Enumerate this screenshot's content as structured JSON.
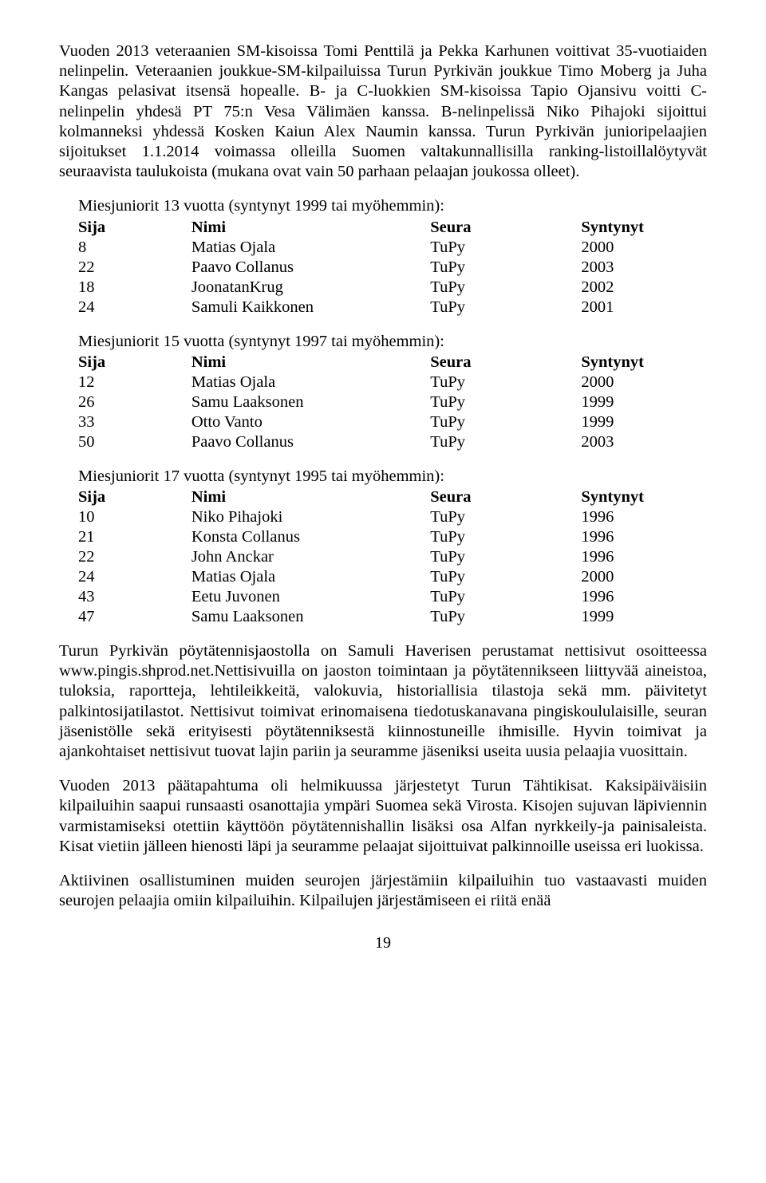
{
  "paragraphs": {
    "p1": "Vuoden 2013 veteraanien SM-kisoissa Tomi Penttilä ja Pekka Karhunen voittivat 35-vuotiaiden nelinpelin. Veteraanien joukkue-SM-kilpailuissa Turun Pyrkivän joukkue Timo Moberg ja Juha Kangas pelasivat itsensä hopealle. B- ja C-luokkien SM-kisoissa Tapio Ojansivu voitti C-nelinpelin yhdesä PT 75:n Vesa Välimäen kanssa. B-nelinpelissä Niko Pihajoki sijoittui kolmanneksi yhdessä Kosken Kaiun Alex Naumin kanssa. Turun Pyrkivän junioripelaajien sijoitukset 1.1.2014 voimassa olleilla Suomen valtakunnallisilla ranking-listoillalöytyvät seuraavista taulukoista (mukana ovat vain 50 parhaan pelaajan joukossa olleet).",
    "p2": "Turun Pyrkivän pöytätennisjaostolla on Samuli Haverisen perustamat nettisivut osoitteessa www.pingis.shprod.net.Nettisivuilla on jaoston toimintaan ja pöytätennikseen liittyvää aineistoa, tuloksia, raportteja, lehtileikkeitä, valokuvia, historiallisia tilastoja sekä mm. päivitetyt palkintosijatilastot. Nettisivut toimivat erinomaisena tiedotuskanavana pingiskoululaisille, seuran jäsenistölle sekä erityisesti pöytätenniksestä kiinnostuneille ihmisille. Hyvin toimivat ja ajankohtaiset nettisivut tuovat lajin pariin ja seuramme jäseniksi useita uusia pelaajia vuosittain.",
    "p3": "Vuoden 2013 päätapahtuma oli helmikuussa järjestetyt Turun Tähtikisat. Kaksipäiväisiin kilpailuihin saapui runsaasti osanottajia ympäri Suomea sekä Virosta. Kisojen sujuvan läpiviennin varmistamiseksi otettiin käyttöön pöytätennishallin lisäksi osa Alfan nyrkkeily-ja painisaleista. Kisat vietiin jälleen hienosti läpi ja seuramme pelaajat sijoittuivat palkinnoille useissa eri luokissa.",
    "p4": "Aktiivinen osallistuminen muiden seurojen järjestämiin kilpailuihin tuo vastaavasti muiden seurojen pelaajia omiin kilpailuihin. Kilpailujen järjestämiseen ei riitä enää"
  },
  "headers": {
    "sija": "Sija",
    "nimi": "Nimi",
    "seura": "Seura",
    "synt": "Syntynyt"
  },
  "table1": {
    "title": "Miesjuniorit 13 vuotta (syntynyt 1999 tai myöhemmin):",
    "rows": [
      {
        "sija": "8",
        "nimi": "Matias Ojala",
        "seura": "TuPy",
        "synt": "2000"
      },
      {
        "sija": "22",
        "nimi": "Paavo Collanus",
        "seura": "TuPy",
        "synt": "2003"
      },
      {
        "sija": "18",
        "nimi": "JoonatanKrug",
        "seura": "TuPy",
        "synt": "2002"
      },
      {
        "sija": "24",
        "nimi": "Samuli Kaikkonen",
        "seura": "TuPy",
        "synt": "2001"
      }
    ]
  },
  "table2": {
    "title": "Miesjuniorit 15 vuotta (syntynyt 1997 tai myöhemmin):",
    "rows": [
      {
        "sija": "12",
        "nimi": "Matias Ojala",
        "seura": "TuPy",
        "synt": "2000"
      },
      {
        "sija": "26",
        "nimi": "Samu Laaksonen",
        "seura": "TuPy",
        "synt": "1999"
      },
      {
        "sija": "33",
        "nimi": "Otto Vanto",
        "seura": "TuPy",
        "synt": "1999"
      },
      {
        "sija": "50",
        "nimi": "Paavo Collanus",
        "seura": "TuPy",
        "synt": "2003"
      }
    ]
  },
  "table3": {
    "title": "Miesjuniorit 17 vuotta (syntynyt 1995 tai myöhemmin):",
    "rows": [
      {
        "sija": "10",
        "nimi": "Niko Pihajoki",
        "seura": "TuPy",
        "synt": "1996"
      },
      {
        "sija": "21",
        "nimi": "Konsta Collanus",
        "seura": "TuPy",
        "synt": "1996"
      },
      {
        "sija": "22",
        "nimi": "John Anckar",
        "seura": "TuPy",
        "synt": "1996"
      },
      {
        "sija": "24",
        "nimi": "Matias Ojala",
        "seura": "TuPy",
        "synt": "2000"
      },
      {
        "sija": "43",
        "nimi": "Eetu Juvonen",
        "seura": "TuPy",
        "synt": "1996"
      },
      {
        "sija": "47",
        "nimi": "Samu Laaksonen",
        "seura": "TuPy",
        "synt": "1999"
      }
    ]
  },
  "pageNumber": "19"
}
